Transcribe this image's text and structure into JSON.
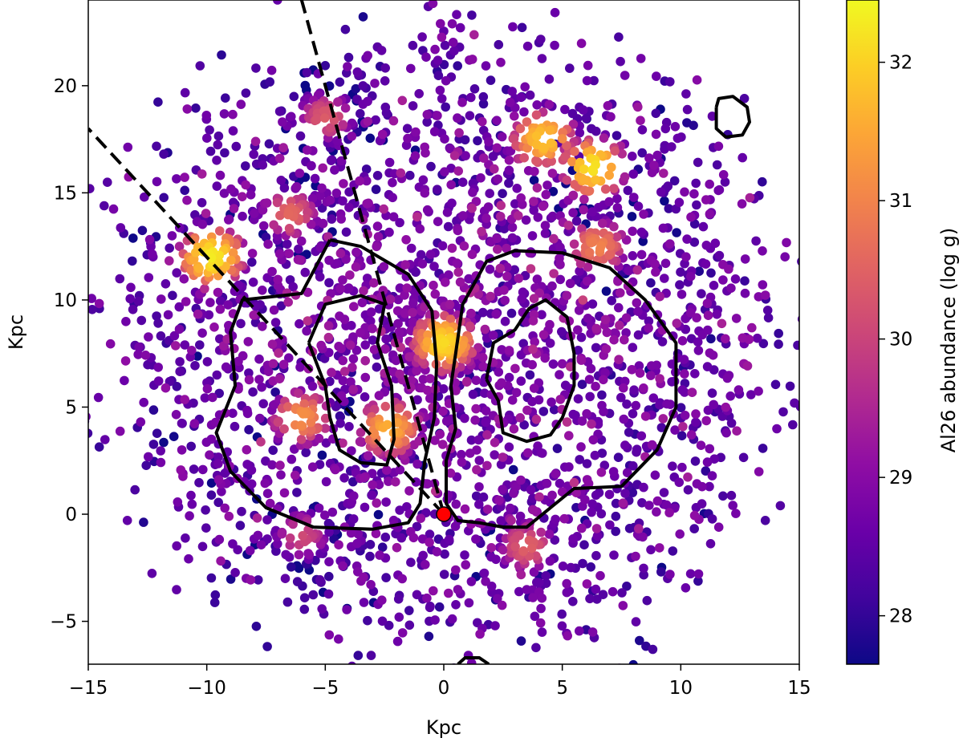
{
  "chart_data": {
    "type": "scatter",
    "title": "",
    "xlabel": "Kpc",
    "ylabel": "Kpc",
    "xlim": [
      -15,
      15
    ],
    "ylim": [
      -7,
      24
    ],
    "xticks": [
      -15,
      -10,
      -5,
      0,
      5,
      10,
      15
    ],
    "xtick_labels": [
      "−15",
      "−10",
      "−5",
      "0",
      "5",
      "10",
      "15"
    ],
    "yticks": [
      -5,
      0,
      5,
      10,
      15,
      20
    ],
    "ytick_labels": [
      "−5",
      "0",
      "5",
      "10",
      "15",
      "20"
    ],
    "grid": false,
    "colormap": "plasma",
    "colorbar": {
      "label": "Al26 abundance (log g)",
      "range": [
        27.65,
        32.45
      ],
      "ticks": [
        28,
        29,
        30,
        31,
        32
      ],
      "tick_labels": [
        "28",
        "29",
        "30",
        "31",
        "32"
      ]
    },
    "series": [
      {
        "kind": "scatter",
        "description_color": "Al26 abundance",
        "hotspots": [
          {
            "x": 0,
            "y": 8,
            "value": 32.1
          },
          {
            "x": -2.3,
            "y": 4,
            "value": 31.6
          },
          {
            "x": -6,
            "y": 4.5,
            "value": 31.2
          },
          {
            "x": -9.8,
            "y": 12,
            "value": 32.3
          },
          {
            "x": -6.5,
            "y": 14,
            "value": 30.6
          },
          {
            "x": -5,
            "y": 18.5,
            "value": 30.4
          },
          {
            "x": 4.2,
            "y": 17.5,
            "value": 31.9
          },
          {
            "x": 6.3,
            "y": 16.2,
            "value": 32.2
          },
          {
            "x": 6.5,
            "y": 12.5,
            "value": 31.0
          },
          {
            "x": 3.5,
            "y": -1.5,
            "value": 30.5
          },
          {
            "x": -6,
            "y": -1,
            "value": 30.1
          }
        ],
        "disk_center": [
          0,
          8
        ],
        "disk_radius": 14,
        "base_value": 28.9
      },
      {
        "kind": "contour",
        "color": "#000000",
        "paths": [
          [
            [
              -4.8,
              12.8
            ],
            [
              -3.5,
              12.5
            ],
            [
              -1.5,
              11.2
            ],
            [
              -0.5,
              9.5
            ],
            [
              -0.3,
              7
            ],
            [
              -0.4,
              4.5
            ],
            [
              -0.8,
              2.5
            ],
            [
              -1,
              0.5
            ],
            [
              -1.5,
              -0.4
            ],
            [
              -3,
              -0.7
            ],
            [
              -5.5,
              -0.6
            ],
            [
              -7.5,
              0.3
            ],
            [
              -9,
              2
            ],
            [
              -9.6,
              3.8
            ],
            [
              -8.8,
              6
            ],
            [
              -9,
              8.5
            ],
            [
              -8.5,
              10
            ],
            [
              -6,
              10.3
            ],
            [
              -4.8,
              12.8
            ]
          ],
          [
            [
              0.5,
              7.5
            ],
            [
              0.8,
              9.8
            ],
            [
              1.8,
              11.8
            ],
            [
              3,
              12.3
            ],
            [
              5,
              12.2
            ],
            [
              7,
              11.5
            ],
            [
              8.5,
              10
            ],
            [
              9.8,
              8
            ],
            [
              9.8,
              5
            ],
            [
              9,
              3
            ],
            [
              7.5,
              1.3
            ],
            [
              5.5,
              1.2
            ],
            [
              4.5,
              0.3
            ],
            [
              3.5,
              -0.6
            ],
            [
              2.5,
              -0.6
            ],
            [
              1.5,
              -0.4
            ],
            [
              0.6,
              -0.3
            ],
            [
              0.1,
              0.5
            ],
            [
              0.1,
              2.5
            ],
            [
              0.5,
              4
            ],
            [
              0.3,
              6
            ],
            [
              0.5,
              7.5
            ]
          ],
          [
            [
              -5.7,
              8
            ],
            [
              -5,
              9.8
            ],
            [
              -3.5,
              10.2
            ],
            [
              -2.5,
              9.8
            ],
            [
              -2.8,
              8
            ],
            [
              -2.2,
              6
            ],
            [
              -2.1,
              3.5
            ],
            [
              -2.4,
              2.3
            ],
            [
              -3.5,
              2.4
            ],
            [
              -4.4,
              3
            ],
            [
              -4.8,
              4.5
            ],
            [
              -5,
              6
            ],
            [
              -5.7,
              8
            ]
          ],
          [
            [
              1.8,
              6.3
            ],
            [
              2.1,
              8
            ],
            [
              3,
              8.6
            ],
            [
              3.6,
              9.6
            ],
            [
              4.3,
              10
            ],
            [
              5.2,
              9.2
            ],
            [
              5.5,
              7.5
            ],
            [
              5.5,
              6
            ],
            [
              5,
              4.5
            ],
            [
              4.5,
              3.7
            ],
            [
              3.5,
              3.4
            ],
            [
              2.5,
              3.8
            ],
            [
              2.3,
              5.3
            ],
            [
              1.8,
              6.3
            ]
          ],
          [
            [
              11.5,
              19
            ],
            [
              11.6,
              19.4
            ],
            [
              12.2,
              19.5
            ],
            [
              12.8,
              19
            ],
            [
              12.9,
              18.3
            ],
            [
              12.6,
              17.7
            ],
            [
              11.9,
              17.6
            ],
            [
              11.5,
              18
            ],
            [
              11.5,
              19
            ]
          ],
          [
            [
              0.6,
              -7
            ],
            [
              0.9,
              -6.7
            ],
            [
              1.5,
              -6.7
            ],
            [
              1.9,
              -7
            ]
          ]
        ]
      },
      {
        "kind": "line",
        "style": "dashed",
        "color": "#000000",
        "points": [
          [
            0,
            0
          ],
          [
            -6,
            24
          ]
        ]
      },
      {
        "kind": "line",
        "style": "dashed",
        "color": "#000000",
        "points": [
          [
            0,
            0
          ],
          [
            -15,
            18
          ]
        ]
      },
      {
        "kind": "marker",
        "name": "",
        "x": 0,
        "y": 0,
        "color": "#ff0000"
      }
    ]
  }
}
